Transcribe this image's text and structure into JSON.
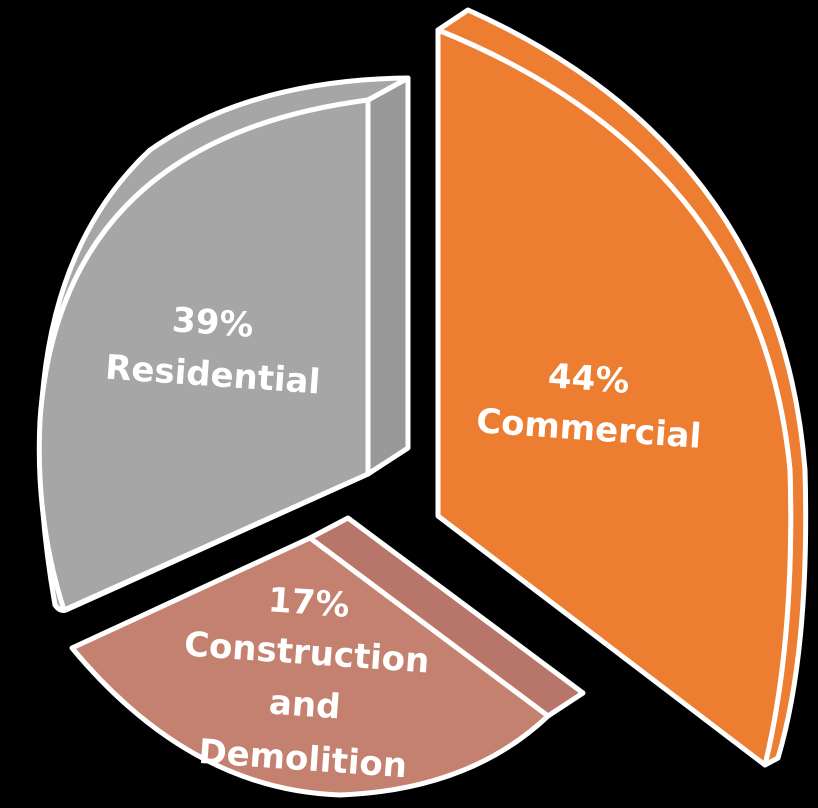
{
  "chart_data": {
    "type": "pie",
    "style": "exploded-3d",
    "background": "#000000",
    "slices": [
      {
        "label": "Commercial",
        "value": 44,
        "value_label": "44%",
        "color": "#ED7D31",
        "side_color": "#ED7D31"
      },
      {
        "label": "Construction and Demolition",
        "value": 17,
        "value_label": "17%",
        "color": "#C48170",
        "side_color": "#B8766A"
      },
      {
        "label": "Residential",
        "value": 39,
        "value_label": "39%",
        "color": "#A6A6A6",
        "side_color": "#999999"
      }
    ]
  }
}
